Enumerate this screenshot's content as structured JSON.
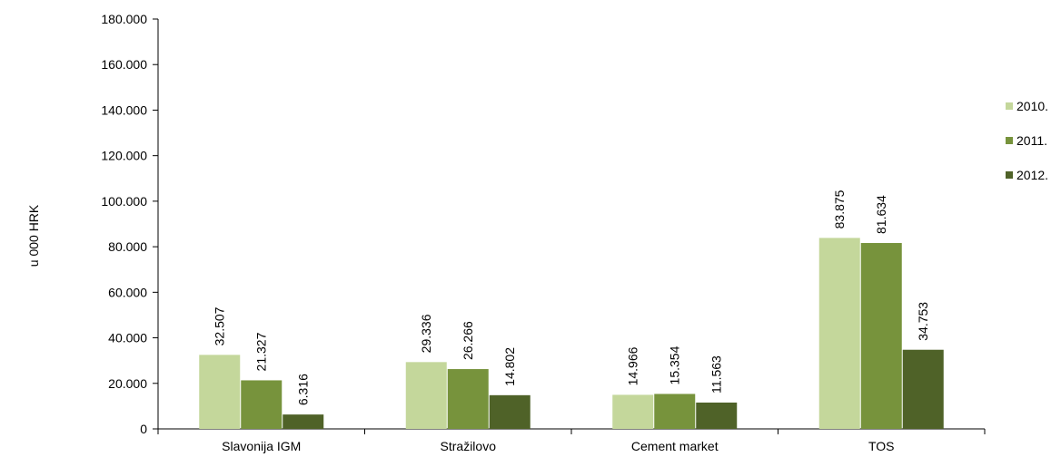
{
  "chart_data": {
    "type": "bar",
    "categories": [
      "Slavonija IGM",
      "Stražilovo",
      "Cement market",
      "TOS"
    ],
    "series": [
      {
        "name": "2010.",
        "values": [
          32507,
          29336,
          14966,
          83875
        ],
        "labels": [
          "32.507",
          "29.336",
          "14.966",
          "83.875"
        ],
        "color": "#c4d79b"
      },
      {
        "name": "2011.",
        "values": [
          21327,
          26266,
          15354,
          81634
        ],
        "labels": [
          "21.327",
          "26.266",
          "15.354",
          "81.634"
        ],
        "color": "#77933c"
      },
      {
        "name": "2012.",
        "values": [
          6316,
          14802,
          11563,
          34753
        ],
        "labels": [
          "6.316",
          "14.802",
          "11.563",
          "34.753"
        ],
        "color": "#4f6228"
      }
    ],
    "ylabel": "u 000 HRK",
    "ylim": [
      0,
      180000
    ],
    "yticks": [
      0,
      20000,
      40000,
      60000,
      80000,
      100000,
      120000,
      140000,
      160000,
      180000
    ],
    "ytick_labels": [
      "0",
      "20.000",
      "40.000",
      "60.000",
      "80.000",
      "100.000",
      "120.000",
      "140.000",
      "160.000",
      "180.000"
    ],
    "legend_position": "right",
    "grid": false
  }
}
